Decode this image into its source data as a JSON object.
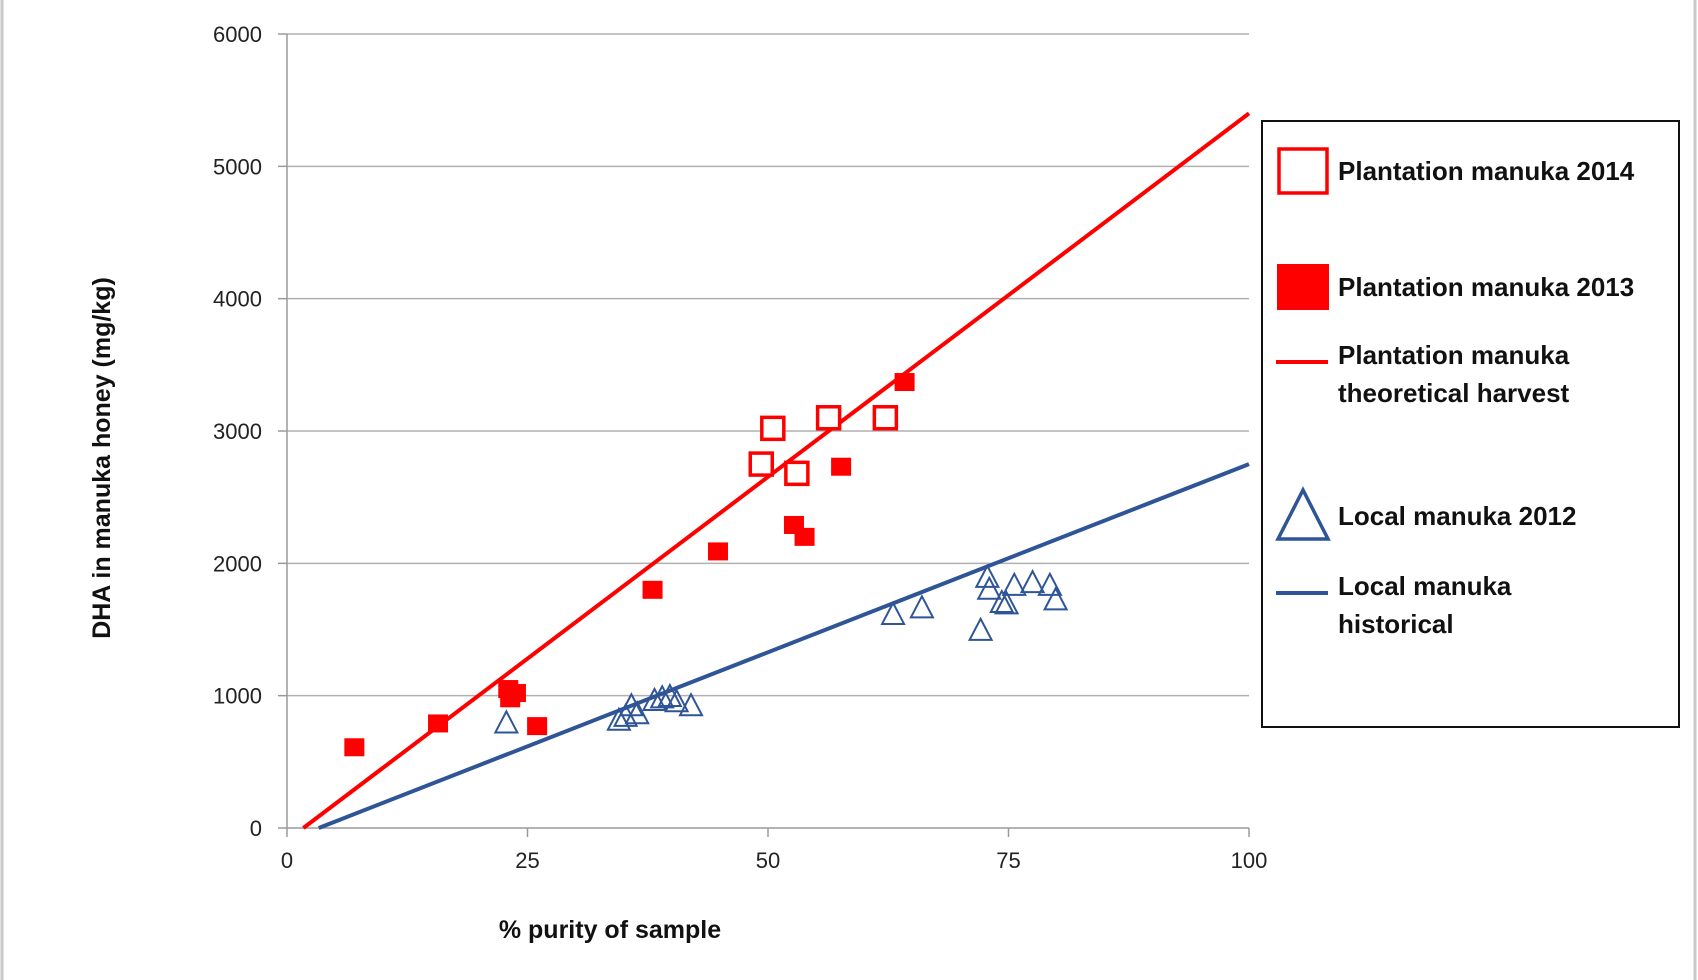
{
  "chart_data": {
    "type": "scatter",
    "title": "",
    "xlabel": "% purity of sample",
    "ylabel": "DHA in manuka honey (mg/kg)",
    "xlim": [
      0,
      100
    ],
    "ylim": [
      0,
      6000
    ],
    "xticks": [
      0,
      25,
      50,
      75,
      100
    ],
    "yticks": [
      0,
      1000,
      2000,
      3000,
      4000,
      5000,
      6000
    ],
    "grid": "horizontal",
    "legend_position": "right",
    "colors": {
      "red": "#ff0000",
      "blue": "#2f5597",
      "grid": "#b0b0b0",
      "axis": "#9a9a9a"
    },
    "series": [
      {
        "name": "Plantation manuka 2014",
        "kind": "points",
        "marker": "open-square",
        "color": "#ff0000",
        "points": [
          [
            49.3,
            2750
          ],
          [
            50.5,
            3020
          ],
          [
            53,
            2680
          ],
          [
            56.3,
            3100
          ],
          [
            62.2,
            3100
          ]
        ]
      },
      {
        "name": "Plantation manuka 2013",
        "kind": "points",
        "marker": "filled-square",
        "color": "#ff0000",
        "points": [
          [
            7,
            610
          ],
          [
            15.7,
            790
          ],
          [
            23,
            1050
          ],
          [
            23.8,
            1020
          ],
          [
            23.2,
            980
          ],
          [
            26,
            770
          ],
          [
            38,
            1800
          ],
          [
            44.8,
            2090
          ],
          [
            52.7,
            2290
          ],
          [
            53.8,
            2200
          ],
          [
            57.6,
            2730
          ],
          [
            64.2,
            3370
          ]
        ]
      },
      {
        "name": "Plantation manuka theoretical harvest",
        "kind": "line",
        "color": "#ff0000",
        "points": [
          [
            1.7,
            0
          ],
          [
            100,
            5400
          ]
        ]
      },
      {
        "name": "Local manuka 2012",
        "kind": "points",
        "marker": "open-triangle",
        "color": "#2f5597",
        "points": [
          [
            22.8,
            790
          ],
          [
            34.5,
            810
          ],
          [
            35.2,
            840
          ],
          [
            35.8,
            920
          ],
          [
            36.4,
            860
          ],
          [
            38.2,
            960
          ],
          [
            39,
            980
          ],
          [
            39.8,
            990
          ],
          [
            40.5,
            950
          ],
          [
            42,
            920
          ],
          [
            63,
            1610
          ],
          [
            66,
            1660
          ],
          [
            72.1,
            1490
          ],
          [
            72.8,
            1890
          ],
          [
            73,
            1800
          ],
          [
            74.3,
            1700
          ],
          [
            74.8,
            1690
          ],
          [
            75.6,
            1830
          ],
          [
            77.5,
            1850
          ],
          [
            79.3,
            1830
          ],
          [
            79.9,
            1720
          ]
        ]
      },
      {
        "name": "Local manuka historical",
        "kind": "line",
        "color": "#2f5597",
        "points": [
          [
            3.3,
            0
          ],
          [
            100,
            2750
          ]
        ]
      }
    ]
  }
}
